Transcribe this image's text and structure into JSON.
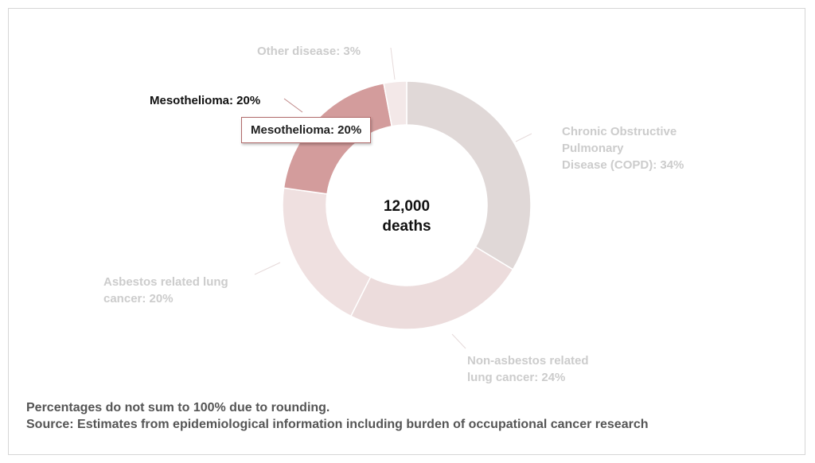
{
  "chart_data": {
    "type": "pie",
    "variant": "donut",
    "center_label": [
      "12,000",
      "deaths"
    ],
    "slices": [
      {
        "label": "Chronic Obstructive Pulmonary Disease (COPD): 34%",
        "lines": [
          "Chronic Obstructive",
          "Pulmonary",
          "Disease (COPD): 34%"
        ],
        "value": 34,
        "color": "#e0d8d7"
      },
      {
        "label": "Non-asbestos related lung cancer: 24%",
        "lines": [
          "Non-asbestos related",
          "lung cancer: 24%"
        ],
        "value": 24,
        "color": "#ecdcdc"
      },
      {
        "label": "Asbestos related lung cancer: 20%",
        "lines": [
          "Asbestos related lung",
          "cancer: 20%"
        ],
        "value": 20,
        "color": "#efe0e0"
      },
      {
        "label": "Mesothelioma: 20%",
        "lines": [
          "Mesothelioma: 20%"
        ],
        "value": 20,
        "color": "#d39c9c",
        "highlighted": true
      },
      {
        "label": "Other disease: 3%",
        "lines": [
          "Other disease: 3%"
        ],
        "value": 3,
        "color": "#f3e8e8"
      }
    ],
    "tooltip": "Mesothelioma: 20%"
  },
  "notes": {
    "rounding": "Percentages do not sum to 100% due to rounding.",
    "source": "Source: Estimates from epidemiological information including burden of occupational cancer research"
  }
}
